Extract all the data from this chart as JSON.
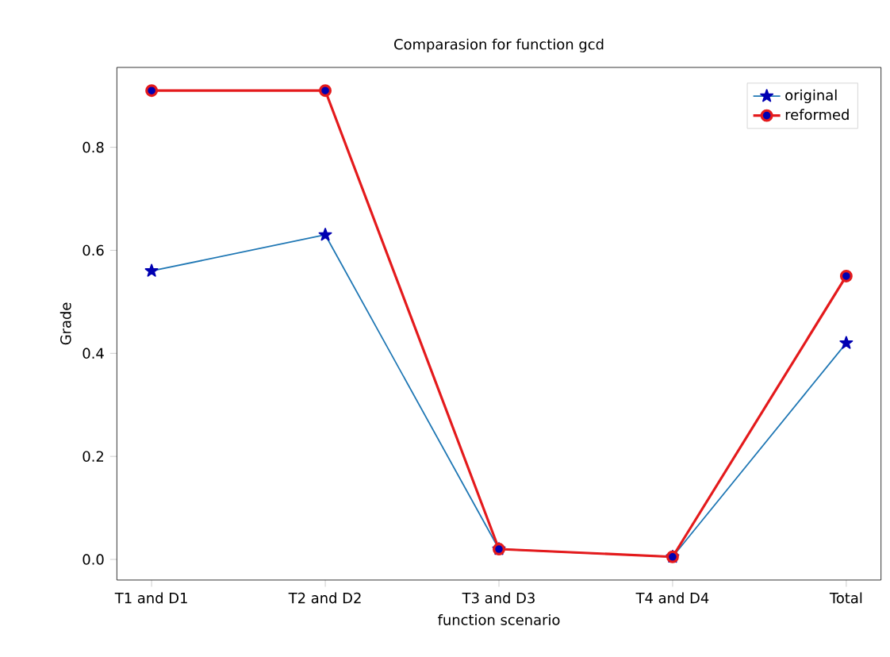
{
  "chart_data": {
    "type": "line",
    "title": "Comparasion for function gcd",
    "xlabel": "function scenario",
    "ylabel": "Grade",
    "categories": [
      "T1 and D1",
      "T2 and D2",
      "T3 and D3",
      "T4 and D4",
      "Total"
    ],
    "series": [
      {
        "name": "original",
        "color": "#1f77b4",
        "marker": "star",
        "values": [
          0.56,
          0.63,
          0.02,
          0.005,
          0.42
        ]
      },
      {
        "name": "reformed",
        "color": "#e41a1c",
        "marker": "circle",
        "values": [
          0.91,
          0.91,
          0.02,
          0.005,
          0.55
        ]
      }
    ],
    "ylim": [
      -0.04,
      0.955
    ],
    "yticks": [
      {
        "value": 0,
        "label": "0.0"
      },
      0.2,
      0.4,
      0.6,
      0.8
    ],
    "legend": "top right",
    "grid": false,
    "line_style": "solid"
  }
}
